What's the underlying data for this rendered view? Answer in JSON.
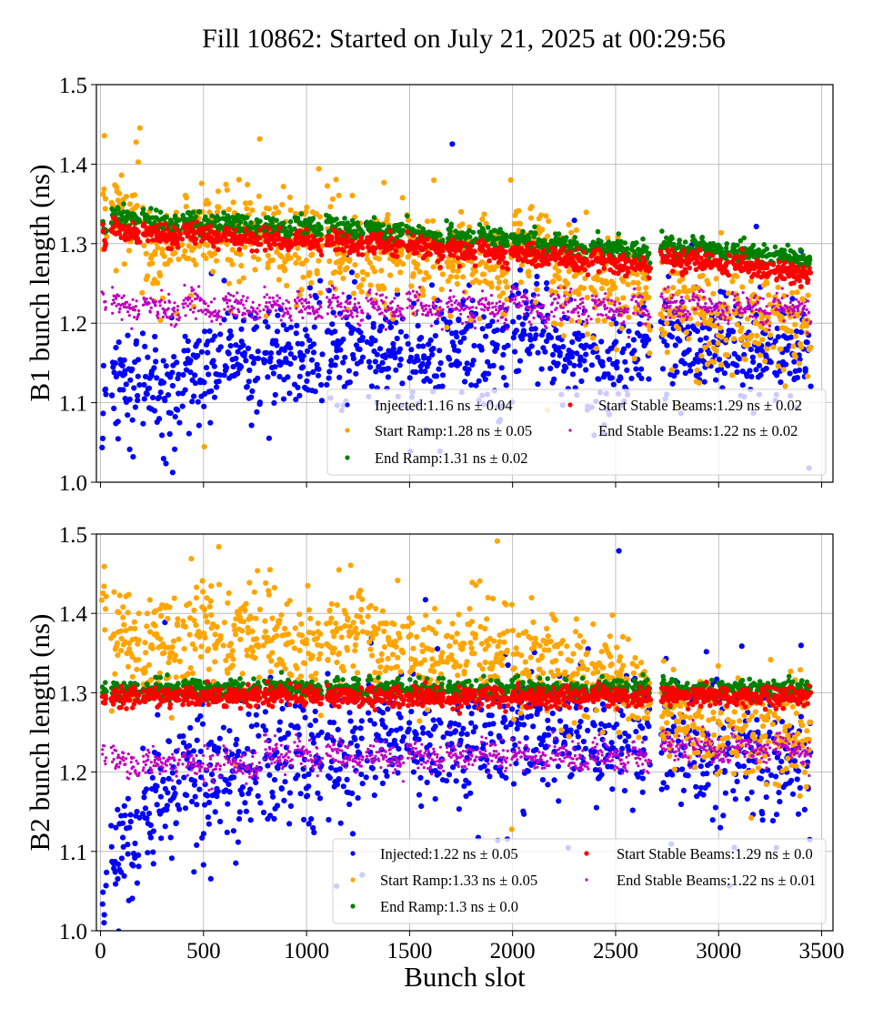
{
  "chart_data": {
    "title": "Fill 10862: Started on July 21, 2025 at 00:29:56",
    "xlabel": "Bunch slot",
    "type": "scatter",
    "shared_x": {
      "xlim": [
        -20,
        3555
      ],
      "ticks": [
        0,
        500,
        1000,
        1500,
        2000,
        2500,
        3000,
        3500
      ],
      "tick_labels": [
        "0",
        "500",
        "1000",
        "1500",
        "2000",
        "2500",
        "3000",
        "3500"
      ]
    },
    "bunch_trains": [
      [
        9,
        27
      ],
      [
        53,
        190
      ],
      [
        204,
        385
      ],
      [
        398,
        584
      ],
      [
        597,
        774
      ],
      [
        792,
        929
      ],
      [
        942,
        1075
      ],
      [
        1097,
        1274
      ],
      [
        1292,
        1469
      ],
      [
        1487,
        1664
      ],
      [
        1681,
        1823
      ],
      [
        1836,
        1978
      ],
      [
        1991,
        2177
      ],
      [
        2186,
        2367
      ],
      [
        2381,
        2566
      ],
      [
        2580,
        2668
      ],
      [
        2721,
        2863
      ],
      [
        2872,
        3053
      ],
      [
        3066,
        3252
      ],
      [
        3265,
        3447
      ]
    ],
    "panels": [
      {
        "ylabel": "B1 bunch length (ns)",
        "ylim": [
          1.0,
          1.5
        ],
        "yticks": [
          1.0,
          1.1,
          1.2,
          1.3,
          1.4,
          1.5
        ],
        "ytick_labels": [
          "1.0",
          "1.1",
          "1.2",
          "1.3",
          "1.4",
          "1.5"
        ],
        "grid": true,
        "legend_position": "lower-right",
        "series": [
          {
            "name": "Injected",
            "legend": "Injected:1.16 ns ± 0.04",
            "color": "#0000ff",
            "mean": 1.16,
            "std": 0.04,
            "train_means": [
              1.09,
              1.12,
              1.12,
              1.14,
              1.15,
              1.15,
              1.16,
              1.17,
              1.16,
              1.16,
              1.17,
              1.15,
              1.2,
              1.16,
              1.15,
              1.16,
              1.17,
              1.17,
              1.16,
              1.17
            ],
            "train_slope": 0.0
          },
          {
            "name": "Start Ramp",
            "legend": "Start Ramp:1.28 ns ± 0.05",
            "color": "#ffa500",
            "mean": 1.28,
            "std": 0.05,
            "train_means": [
              1.35,
              1.34,
              1.3,
              1.31,
              1.31,
              1.3,
              1.29,
              1.29,
              1.29,
              1.28,
              1.28,
              1.28,
              1.3,
              1.26,
              1.25,
              1.24,
              1.22,
              1.21,
              1.2,
              1.2
            ],
            "train_slope": 0.0
          },
          {
            "name": "End Ramp",
            "legend": "End Ramp:1.31 ns ± 0.02",
            "color": "#008000",
            "mean": 1.31,
            "std": 0.02,
            "train_means": [
              1.325,
              1.332,
              1.327,
              1.328,
              1.324,
              1.32,
              1.32,
              1.318,
              1.316,
              1.311,
              1.307,
              1.305,
              1.302,
              1.297,
              1.294,
              1.288,
              1.296,
              1.293,
              1.287,
              1.281
            ],
            "train_slope": -0.012
          },
          {
            "name": "Start Stable Beams",
            "legend": "Start Stable Beams:1.29 ns ± 0.02",
            "color": "#ff0000",
            "mean": 1.29,
            "std": 0.02,
            "train_means": [
              1.308,
              1.315,
              1.31,
              1.311,
              1.307,
              1.303,
              1.303,
              1.301,
              1.299,
              1.294,
              1.29,
              1.288,
              1.285,
              1.28,
              1.277,
              1.271,
              1.279,
              1.276,
              1.27,
              1.264
            ],
            "train_slope": -0.012
          },
          {
            "name": "End Stable Beams",
            "legend": "End Stable Beams:1.22 ns ± 0.02",
            "color": "#bf00bf",
            "mean": 1.22,
            "std": 0.02,
            "train_means": [
              1.23,
              1.22,
              1.22,
              1.22,
              1.22,
              1.22,
              1.22,
              1.22,
              1.22,
              1.22,
              1.22,
              1.22,
              1.22,
              1.22,
              1.22,
              1.22,
              1.22,
              1.22,
              1.22,
              1.22
            ],
            "train_slope": -0.02
          }
        ]
      },
      {
        "ylabel": "B2 bunch length (ns)",
        "ylim": [
          1.0,
          1.5
        ],
        "yticks": [
          1.0,
          1.1,
          1.2,
          1.3,
          1.4,
          1.5
        ],
        "ytick_labels": [
          "1.0",
          "1.1",
          "1.2",
          "1.3",
          "1.4",
          "1.5"
        ],
        "grid": true,
        "legend_position": "lower-right",
        "series": [
          {
            "name": "Injected",
            "legend": "Injected:1.22 ns ± 0.05",
            "color": "#0000ff",
            "mean": 1.22,
            "std": 0.05,
            "train_means": [
              1.07,
              1.11,
              1.16,
              1.2,
              1.21,
              1.22,
              1.22,
              1.23,
              1.25,
              1.24,
              1.24,
              1.25,
              1.25,
              1.24,
              1.24,
              1.25,
              1.23,
              1.23,
              1.21,
              1.22
            ],
            "train_slope": 0.0
          },
          {
            "name": "Start Ramp",
            "legend": "Start Ramp:1.33 ns ± 0.05",
            "color": "#ffa500",
            "mean": 1.33,
            "std": 0.05,
            "train_means": [
              1.42,
              1.37,
              1.36,
              1.37,
              1.37,
              1.37,
              1.36,
              1.38,
              1.36,
              1.34,
              1.35,
              1.35,
              1.34,
              1.33,
              1.32,
              1.3,
              1.27,
              1.26,
              1.26,
              1.25
            ],
            "train_slope": 0.0
          },
          {
            "name": "End Ramp",
            "legend": "End Ramp:1.3 ns ± 0.0",
            "color": "#008000",
            "mean": 1.3,
            "std": 0.0,
            "train_means": [
              1.305,
              1.305,
              1.305,
              1.305,
              1.305,
              1.305,
              1.305,
              1.305,
              1.305,
              1.305,
              1.305,
              1.305,
              1.305,
              1.305,
              1.305,
              1.305,
              1.305,
              1.305,
              1.305,
              1.305
            ],
            "train_slope": 0.0
          },
          {
            "name": "Start Stable Beams",
            "legend": "Start Stable Beams:1.29 ns ± 0.0",
            "color": "#ff0000",
            "mean": 1.29,
            "std": 0.0,
            "train_means": [
              1.294,
              1.295,
              1.295,
              1.295,
              1.295,
              1.295,
              1.295,
              1.295,
              1.295,
              1.295,
              1.295,
              1.295,
              1.295,
              1.295,
              1.295,
              1.295,
              1.295,
              1.295,
              1.295,
              1.295
            ],
            "train_slope": 0.0
          },
          {
            "name": "End Stable Beams",
            "legend": "End Stable Beams:1.22 ns ± 0.01",
            "color": "#bf00bf",
            "mean": 1.22,
            "std": 0.01,
            "train_means": [
              1.22,
              1.21,
              1.21,
              1.21,
              1.21,
              1.22,
              1.22,
              1.22,
              1.22,
              1.22,
              1.22,
              1.22,
              1.22,
              1.22,
              1.22,
              1.22,
              1.23,
              1.23,
              1.23,
              1.23
            ],
            "train_slope": -0.015
          }
        ]
      }
    ]
  }
}
